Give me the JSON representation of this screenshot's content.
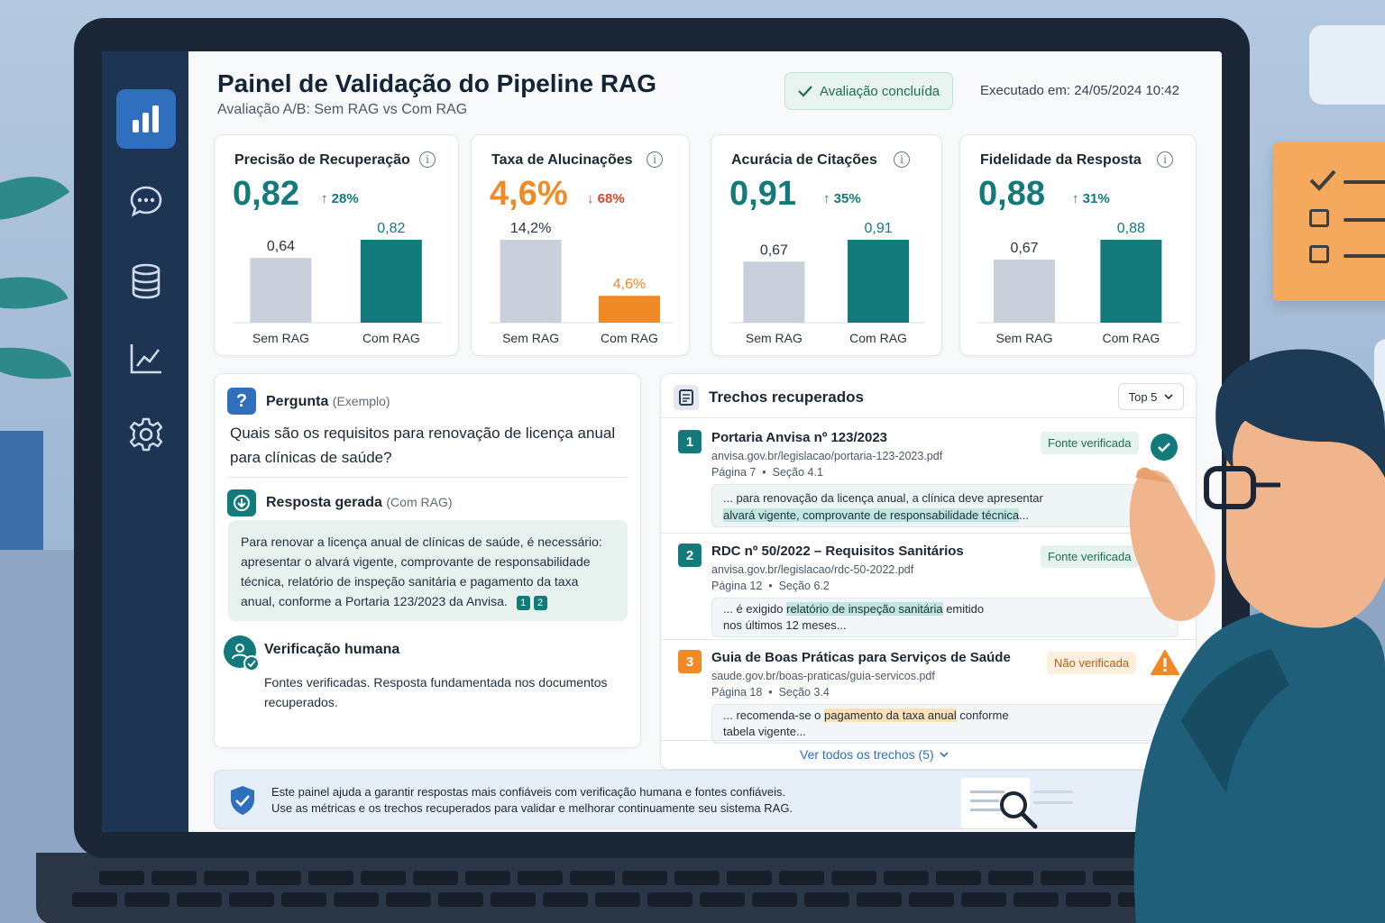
{
  "header": {
    "title": "Painel de Validação do Pipeline RAG",
    "subtitle": "Avaliação A/B: Sem RAG vs Com RAG",
    "status": "Avaliação concluída",
    "executed": "Executado em: 24/05/2024 10:42"
  },
  "sidebar": {
    "items": [
      {
        "icon": "bar-chart-icon",
        "active": true
      },
      {
        "icon": "chat-icon",
        "active": false
      },
      {
        "icon": "database-icon",
        "active": false
      },
      {
        "icon": "line-chart-icon",
        "active": false
      },
      {
        "icon": "gear-icon",
        "active": false
      }
    ]
  },
  "colors": {
    "teal": "#127a7a",
    "orange": "#f08a24",
    "gray_bar": "#c9d0db",
    "up": "#127a7a",
    "down": "#d6452c"
  },
  "chart_data": [
    {
      "type": "bar",
      "title": "Precisão de Recuperação",
      "value": "0,82",
      "delta": "28%",
      "delta_dir": "up",
      "categories": [
        "Sem RAG",
        "Com RAG"
      ],
      "values": [
        0.64,
        0.82
      ],
      "value_labels": [
        "0,64",
        "0,82"
      ],
      "accent": "teal"
    },
    {
      "type": "bar",
      "title": "Taxa de Alucinações",
      "value": "4,6%",
      "delta": "68%",
      "delta_dir": "down",
      "categories": [
        "Sem RAG",
        "Com RAG"
      ],
      "values": [
        14.2,
        4.6
      ],
      "value_labels": [
        "14,2%",
        "4,6%"
      ],
      "accent": "orange"
    },
    {
      "type": "bar",
      "title": "Acurácia de Citações",
      "value": "0,91",
      "delta": "35%",
      "delta_dir": "up",
      "categories": [
        "Sem RAG",
        "Com RAG"
      ],
      "values": [
        0.67,
        0.91
      ],
      "value_labels": [
        "0,67",
        "0,91"
      ],
      "accent": "teal"
    },
    {
      "type": "bar",
      "title": "Fidelidade da Resposta",
      "value": "0,88",
      "delta": "31%",
      "delta_dir": "up",
      "categories": [
        "Sem RAG",
        "Com RAG"
      ],
      "values": [
        0.67,
        0.88
      ],
      "value_labels": [
        "0,67",
        "0,88"
      ],
      "accent": "teal"
    }
  ],
  "question": {
    "label": "Pergunta",
    "tag": "(Exemplo)",
    "text_line1": "Quais são os requisitos para renovação de licença anual",
    "text_line2": "para clínicas de saúde?"
  },
  "answer": {
    "label": "Resposta gerada",
    "tag": "(Com RAG)",
    "lines": [
      "Para renovar a licença anual de clínicas de saúde, é necessário:",
      "apresentar o alvará vigente, comprovante de responsabilidade",
      "técnica, relatório de inspeção sanitária e pagamento da taxa",
      "anual, conforme a Portaria 123/2023 da Anvisa."
    ],
    "citations": [
      "1",
      "2"
    ]
  },
  "human_check": {
    "label": "Verificação humana",
    "line1": "Fontes verificadas. Resposta fundamentada nos documentos",
    "line2": "recuperados."
  },
  "chunks": {
    "title": "Trechos recuperados",
    "top_select": "Top 5",
    "see_all": "Ver todos os trechos (5)",
    "items": [
      {
        "num": "1",
        "title": "Portaria Anvisa nº 123/2023",
        "url": "anvisa.gov.br/legislacao/portaria-123-2023.pdf",
        "meta": "Página 7  •  Seção 4.1",
        "badge": "Fonte verificada",
        "verified": true,
        "excerpt_pre": "... para renovação da licença anual, a clínica deve apresentar",
        "excerpt_hl": "alvará vigente, comprovante de responsabilidade técnica",
        "excerpt_post": "..."
      },
      {
        "num": "2",
        "title": "RDC nº 50/2022 – Requisitos Sanitários",
        "url": "anvisa.gov.br/legislacao/rdc-50-2022.pdf",
        "meta": "Página 12  •  Seção 6.2",
        "badge": "Fonte verificada",
        "verified": true,
        "excerpt_pre": "... é exigido",
        "excerpt_hl": "relatório de inspeção sanitária",
        "excerpt_post": "emitido",
        "excerpt_line2": "nos últimos 12 meses..."
      },
      {
        "num": "3",
        "title": "Guia de Boas Práticas para Serviços de Saúde",
        "url": "saude.gov.br/boas-praticas/guia-servicos.pdf",
        "meta": "Página 18  •  Seção 3.4",
        "badge": "Não verificada",
        "verified": false,
        "excerpt_pre": "... recomenda-se o",
        "excerpt_hl": "pagamento da taxa anual",
        "excerpt_post": "conforme",
        "excerpt_line2": "tabela vigente..."
      }
    ]
  },
  "notice": {
    "line1": "Este painel ajuda a garantir respostas mais confiáveis com verificação humana e fontes confiáveis.",
    "line2": "Use as métricas e os trechos recuperados para validar e melhorar continuamente seu sistema RAG."
  }
}
